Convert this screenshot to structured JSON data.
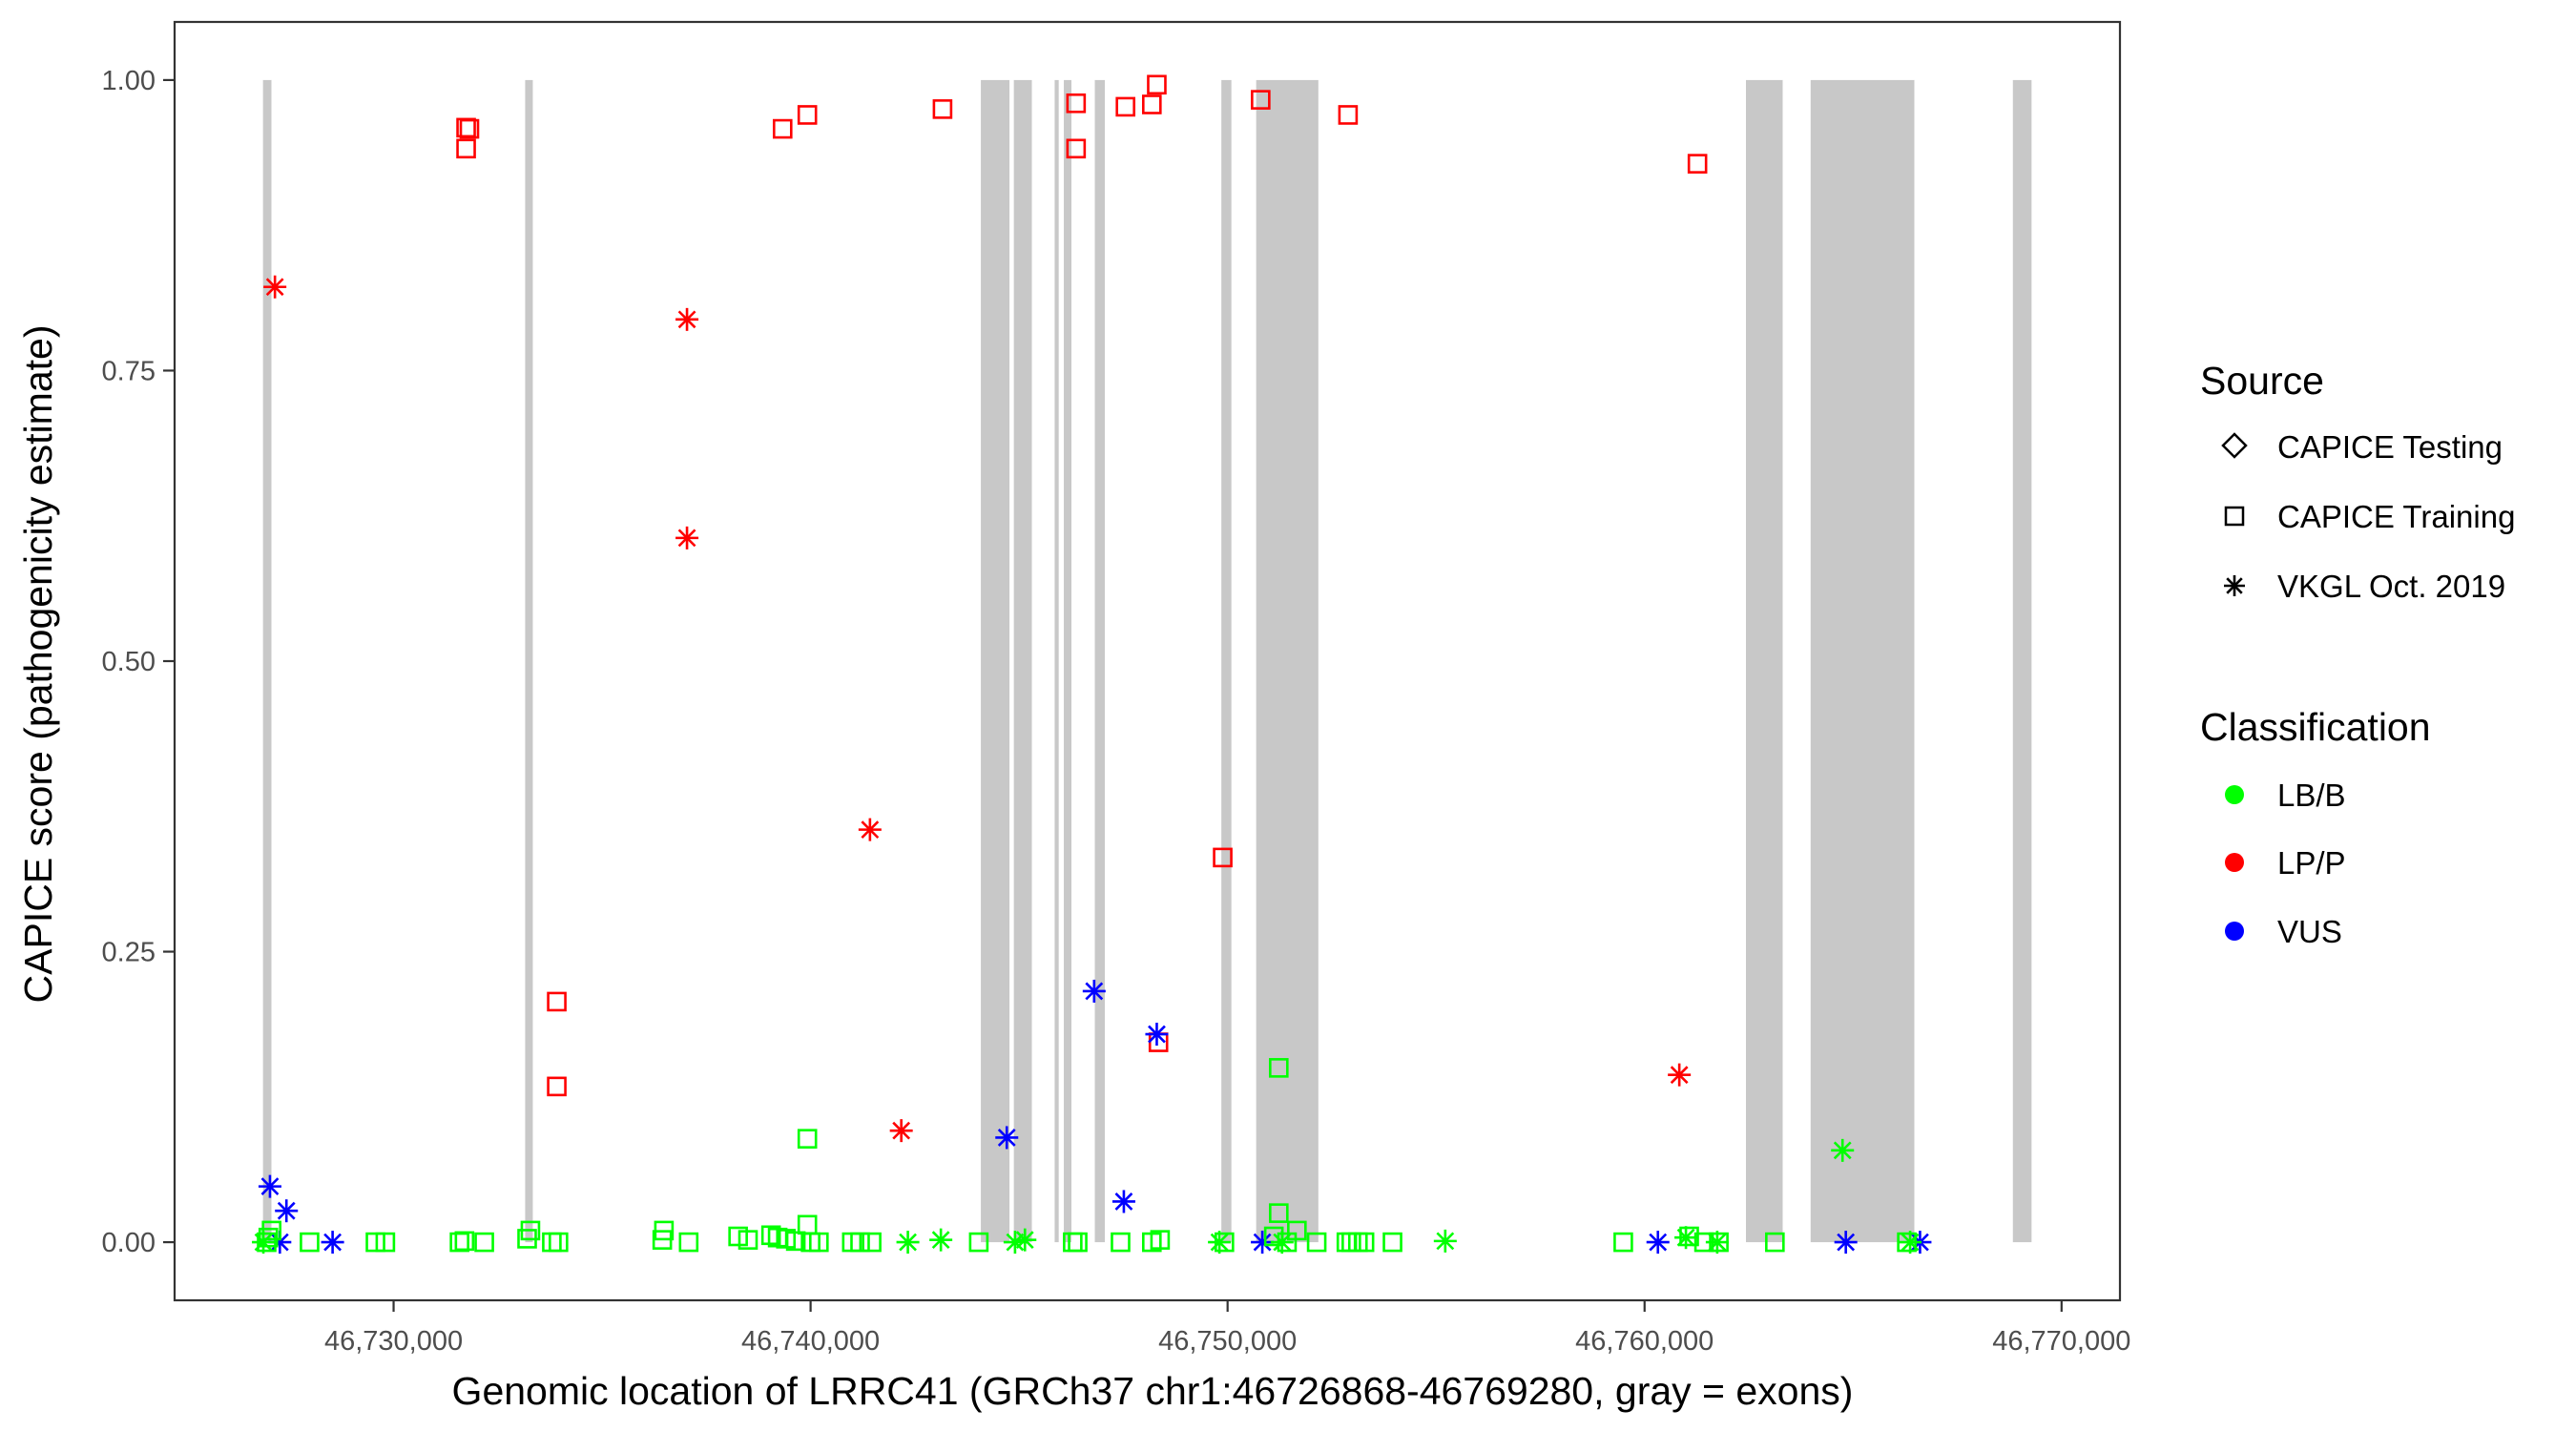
{
  "chart_data": {
    "type": "scatter",
    "xlabel": "Genomic location of LRRC41 (GRCh37 chr1:46726868-46769280, gray = exons)",
    "ylabel": "CAPICE score (pathogenicity estimate)",
    "xlim": [
      46724748,
      46771400
    ],
    "ylim": [
      -0.05,
      1.05
    ],
    "x_ticks": [
      46730000,
      46740000,
      46750000,
      46760000,
      46770000
    ],
    "x_tick_labels": [
      "46,730,000",
      "46,740,000",
      "46,750,000",
      "46,760,000",
      "46,770,000"
    ],
    "y_ticks": [
      0,
      0.25,
      0.5,
      0.75,
      1.0
    ],
    "y_tick_labels": [
      "0.00",
      "0.25",
      "0.50",
      "0.75",
      "1.00"
    ],
    "grid": false,
    "legend_placement": "right",
    "exon_color": "#c8c8c8",
    "exons": [
      [
        46726868,
        46727070
      ],
      [
        46733155,
        46733338
      ],
      [
        46744083,
        46744769
      ],
      [
        46744874,
        46745306
      ],
      [
        46745853,
        46745950
      ],
      [
        46746073,
        46746255
      ],
      [
        46746816,
        46747056
      ],
      [
        46749851,
        46750091
      ],
      [
        46750686,
        46752177
      ],
      [
        46762431,
        46763312
      ],
      [
        46763982,
        46766469
      ],
      [
        46768832,
        46769280
      ]
    ],
    "legend": {
      "source_title": "Source",
      "sources": [
        {
          "label": "CAPICE Testing",
          "shape": "diamond"
        },
        {
          "label": "CAPICE Training",
          "shape": "square"
        },
        {
          "label": "VKGL Oct. 2019",
          "shape": "asterisk"
        }
      ],
      "classification_title": "Classification",
      "classes": [
        {
          "label": "LB/B",
          "color": "#00ff00"
        },
        {
          "label": "LP/P",
          "color": "#ff0000"
        },
        {
          "label": "VUS",
          "color": "#0000ff"
        }
      ]
    },
    "series": [
      {
        "source": "CAPICE Training",
        "classification": "LP/P",
        "points": [
          [
            46731739,
            0.959
          ],
          [
            46731818,
            0.958
          ],
          [
            46731739,
            0.941
          ],
          [
            46739329,
            0.958
          ],
          [
            46739922,
            0.97
          ],
          [
            46743164,
            0.975
          ],
          [
            46746366,
            0.98
          ],
          [
            46746366,
            0.941
          ],
          [
            46747552,
            0.977
          ],
          [
            46748184,
            0.979
          ],
          [
            46748302,
            0.996
          ],
          [
            46750793,
            0.983
          ],
          [
            46752888,
            0.97
          ],
          [
            46761268,
            0.928
          ],
          [
            46733913,
            0.207
          ],
          [
            46733913,
            0.134
          ],
          [
            46749883,
            0.331
          ],
          [
            46748342,
            0.172
          ]
        ]
      },
      {
        "source": "VKGL Oct. 2019",
        "classification": "LP/P",
        "points": [
          [
            46727154,
            0.822
          ],
          [
            46737036,
            0.794
          ],
          [
            46737036,
            0.606
          ],
          [
            46741424,
            0.355
          ],
          [
            46742175,
            0.096
          ],
          [
            46760833,
            0.144
          ]
        ]
      },
      {
        "source": "VKGL Oct. 2019",
        "classification": "VUS",
        "points": [
          [
            46727035,
            0.048
          ],
          [
            46727430,
            0.027
          ],
          [
            46727272,
            0.0
          ],
          [
            46728537,
            0.0
          ],
          [
            46744705,
            0.09
          ],
          [
            46746800,
            0.216
          ],
          [
            46747512,
            0.035
          ],
          [
            46748302,
            0.179
          ],
          [
            46750833,
            0.0
          ],
          [
            46760320,
            0.0
          ],
          [
            46764826,
            0.0
          ],
          [
            46766605,
            0.0
          ]
        ]
      },
      {
        "source": "VKGL Oct. 2019",
        "classification": "LB/B",
        "points": [
          [
            46726877,
            0.0
          ],
          [
            46742333,
            0.0
          ],
          [
            46743124,
            0.002
          ],
          [
            46744903,
            0.0
          ],
          [
            46745140,
            0.002
          ],
          [
            46749804,
            0.0
          ],
          [
            46751306,
            0.0
          ],
          [
            46755220,
            0.001
          ],
          [
            46760991,
            0.004
          ],
          [
            46761742,
            0.0
          ],
          [
            46764747,
            0.079
          ],
          [
            46766368,
            0.0
          ]
        ]
      },
      {
        "source": "CAPICE Training",
        "classification": "LB/B",
        "points": [
          [
            46726956,
            0.0
          ],
          [
            46726996,
            0.004
          ],
          [
            46727075,
            0.01
          ],
          [
            46727984,
            0.0
          ],
          [
            46729565,
            0.0
          ],
          [
            46729802,
            0.0
          ],
          [
            46731581,
            0.0
          ],
          [
            46731700,
            0.001
          ],
          [
            46732174,
            0.0
          ],
          [
            46733202,
            0.003
          ],
          [
            46733281,
            0.01
          ],
          [
            46733795,
            0.0
          ],
          [
            46733953,
            0.0
          ],
          [
            46736443,
            0.002
          ],
          [
            46736483,
            0.01
          ],
          [
            46737076,
            0.0
          ],
          [
            46738262,
            0.005
          ],
          [
            46738499,
            0.002
          ],
          [
            46739052,
            0.006
          ],
          [
            46739210,
            0.004
          ],
          [
            46739408,
            0.003
          ],
          [
            46739645,
            0.001
          ],
          [
            46739922,
            0.015
          ],
          [
            46739922,
            0.089
          ],
          [
            46740001,
            0.0
          ],
          [
            46740199,
            0.0
          ],
          [
            46740989,
            0.0
          ],
          [
            46741187,
            0.0
          ],
          [
            46741464,
            0.0
          ],
          [
            46744033,
            0.0
          ],
          [
            46746286,
            0.0
          ],
          [
            46746405,
            0.0
          ],
          [
            46747433,
            0.0
          ],
          [
            46748184,
            0.0
          ],
          [
            46748381,
            0.002
          ],
          [
            46749923,
            0.0
          ],
          [
            46751109,
            0.005
          ],
          [
            46751227,
            0.025
          ],
          [
            46751227,
            0.15
          ],
          [
            46751425,
            0.0
          ],
          [
            46751662,
            0.01
          ],
          [
            46752137,
            0.0
          ],
          [
            46752849,
            0.0
          ],
          [
            46752967,
            0.0
          ],
          [
            46753125,
            0.0
          ],
          [
            46753283,
            0.0
          ],
          [
            46753955,
            0.0
          ],
          [
            46759489,
            0.0
          ],
          [
            46761070,
            0.005
          ],
          [
            46761426,
            0.0
          ],
          [
            46761781,
            0.0
          ],
          [
            46763125,
            0.0
          ],
          [
            46766289,
            0.0
          ]
        ]
      }
    ]
  }
}
